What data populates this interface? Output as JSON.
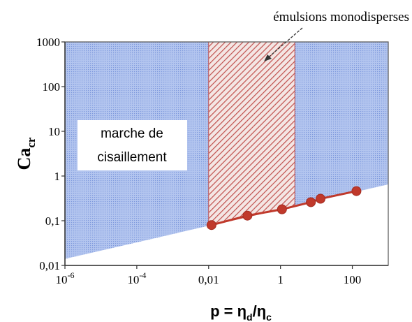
{
  "chart_data": {
    "type": "scatter",
    "x_scale": "log",
    "y_scale": "log",
    "xlim": [
      1e-06,
      1000
    ],
    "ylim": [
      0.01,
      1000
    ],
    "x_ticks": [
      {
        "value": 1e-06,
        "base": "10",
        "exp": "-6"
      },
      {
        "value": 0.0001,
        "base": "10",
        "exp": "-4"
      },
      {
        "value": 0.01,
        "base": "0,01",
        "exp": ""
      },
      {
        "value": 1,
        "base": "1",
        "exp": ""
      },
      {
        "value": 100,
        "base": "100",
        "exp": ""
      }
    ],
    "y_ticks": [
      {
        "value": 1000,
        "label": "1000"
      },
      {
        "value": 100,
        "label": "100"
      },
      {
        "value": 10,
        "label": "10"
      },
      {
        "value": 1,
        "label": "1"
      },
      {
        "value": 0.1,
        "label": "0,1"
      },
      {
        "value": 0.01,
        "label": "0,01"
      }
    ],
    "xlabel": {
      "main": "p = η",
      "sub1": "d",
      "mid": "/η",
      "sub2": "c"
    },
    "ylabel": {
      "main": "Ca",
      "sub": "cr"
    },
    "series": [
      {
        "x": [
          0.012,
          0.12,
          1.1,
          7,
          13,
          130
        ],
        "y": [
          0.08,
          0.13,
          0.18,
          0.26,
          0.31,
          0.46
        ],
        "color": "#c0392b"
      }
    ],
    "boundary_line": {
      "x": [
        1e-06,
        1000
      ],
      "y": [
        0.014,
        0.65
      ]
    },
    "shaded_region": {
      "color": "#9fb6e8"
    },
    "hatched_band": {
      "x": [
        0.01,
        2.5
      ],
      "color": "#c0504d"
    },
    "box_label": {
      "line1": "marche de",
      "line2": "cisaillement"
    },
    "annotation": {
      "text": "émulsions monodisperses"
    }
  }
}
